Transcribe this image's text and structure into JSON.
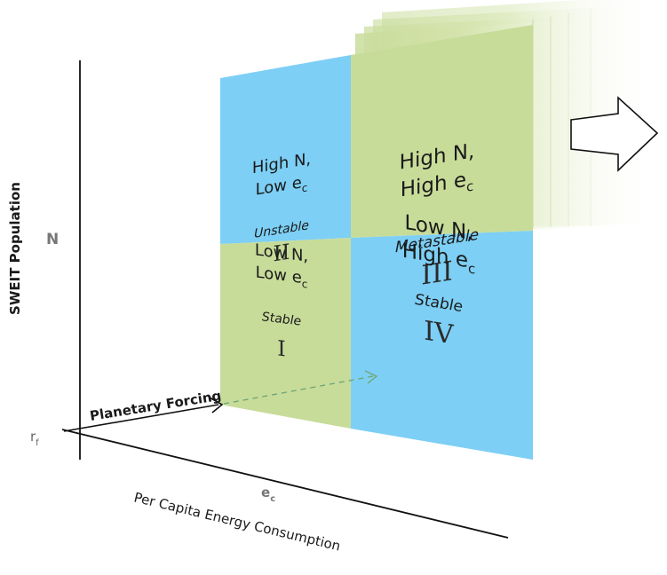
{
  "axes": {
    "y_label": "SWEIT Population",
    "y_var": "N",
    "x_label": "Per Capita Energy Consumption",
    "x_var_base": "e",
    "x_var_sub": "c",
    "origin_base": "r",
    "origin_sub": "f"
  },
  "forcing_label": "Planetary Forcing",
  "quadrants": [
    {
      "id": "II",
      "line1": "High N,",
      "line2_base": "Low e",
      "line2_sub": "c",
      "state": "Unstable",
      "numeral": "II",
      "color": "#7dcff5"
    },
    {
      "id": "III",
      "line1": "High N,",
      "line2_base": "High e",
      "line2_sub": "c",
      "state": "Metastable",
      "numeral": "III",
      "color": "#c8dc9a"
    },
    {
      "id": "I",
      "line1": "Low N,",
      "line2_base": "Low e",
      "line2_sub": "c",
      "state": "Stable",
      "numeral": "I",
      "color": "#c8dc9a"
    },
    {
      "id": "IV",
      "line1": "Low N,",
      "line2_base": "High e",
      "line2_sub": "c",
      "state": "Stable",
      "numeral": "IV",
      "color": "#7dcff5"
    }
  ],
  "colors": {
    "axis": "#111111",
    "text": "#1a1a1a",
    "var_gray": "#777777",
    "numeral": "#2a2a2a"
  },
  "icons": {
    "time_arrow": "right-arrow-outline-icon",
    "forcing_arrow": "arrow-right-icon",
    "dashed_arrow": "dashed-arrow-right-icon"
  }
}
